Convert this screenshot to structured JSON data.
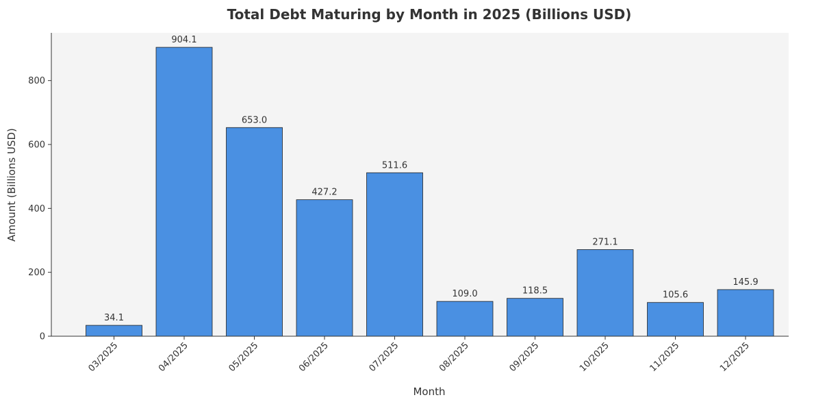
{
  "chart_data": {
    "type": "bar",
    "title": "Total Debt Maturing by Month in 2025 (Billions USD)",
    "xlabel": "Month",
    "ylabel": "Amount (Billions USD)",
    "categories": [
      "03/2025",
      "04/2025",
      "05/2025",
      "06/2025",
      "07/2025",
      "08/2025",
      "09/2025",
      "10/2025",
      "11/2025",
      "12/2025"
    ],
    "values": [
      34.1,
      904.1,
      653.0,
      427.2,
      511.6,
      109.0,
      118.5,
      271.1,
      105.6,
      145.9
    ],
    "value_labels": [
      "34.1",
      "904.1",
      "653.0",
      "427.2",
      "511.6",
      "109.0",
      "118.5",
      "271.1",
      "105.6",
      "145.9"
    ],
    "yticks": [
      0,
      200,
      400,
      600,
      800
    ],
    "ylim": [
      0,
      949.3
    ],
    "grid": false,
    "legend": "none",
    "colors": {
      "bar": "#4a90e2",
      "bar_edge": "#222222",
      "plot_bg": "#f4f4f4",
      "axis": "#333333"
    }
  }
}
